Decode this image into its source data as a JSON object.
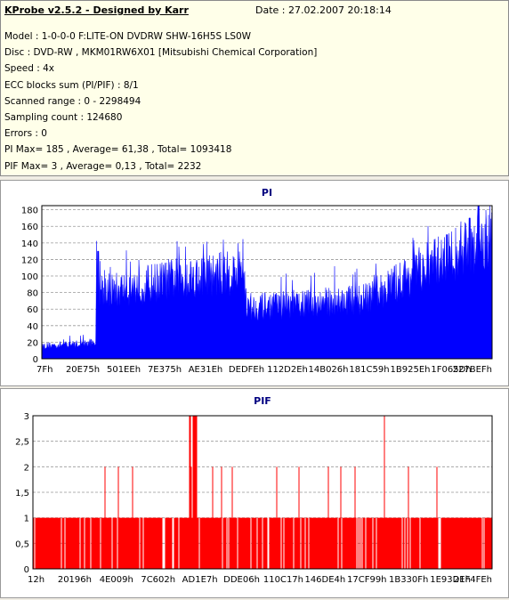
{
  "header": {
    "title": "KProbe v2.5.2 - Designed by Karr",
    "date": "Date : 27.02.2007 20:18:14",
    "lines": [
      "Model : 1-0-0-0 F:LITE-ON DVDRW SHW-16H5S  LS0W",
      "Disc : DVD-RW , MKM01RW6X01 [Mitsubishi Chemical Corporation]",
      "Speed : 4x",
      "ECC blocks sum (PI/PIF) : 8/1",
      "Scanned range : 0 - 2298494",
      "Sampling count : 124680",
      "Errors : 0",
      "PI Max= 185 , Average= 61,38 , Total= 1093418",
      "PIF Max= 3 , Average= 0,13 , Total= 2232"
    ]
  },
  "chart_data": [
    {
      "type": "area",
      "title": "PI",
      "color": "#0000ff",
      "ylim": [
        0,
        185
      ],
      "yticks": [
        "0",
        "20",
        "40",
        "60",
        "80",
        "100",
        "120",
        "140",
        "160",
        "180"
      ],
      "xticks": [
        "7Fh",
        "20E75h",
        "501EEh",
        "7E375h",
        "AE31Eh",
        "DEDFEh",
        "112D2Eh",
        "14B026h",
        "181C59h",
        "1B925Eh",
        "1F065Dh",
        "227BEFh"
      ],
      "grid": true,
      "profile": [
        [
          0,
          15
        ],
        [
          0.1,
          18
        ],
        [
          0.12,
          20
        ],
        [
          0.121,
          85
        ],
        [
          0.16,
          80
        ],
        [
          0.3,
          95
        ],
        [
          0.45,
          102
        ],
        [
          0.455,
          60
        ],
        [
          0.72,
          70
        ],
        [
          0.86,
          110
        ],
        [
          1.0,
          140
        ]
      ],
      "spikes": [
        [
          0.125,
          130
        ],
        [
          0.9,
          150
        ],
        [
          0.95,
          170
        ],
        [
          0.97,
          185
        ]
      ]
    },
    {
      "type": "bar",
      "title": "PIF",
      "color": "#ff0000",
      "ylim": [
        0,
        3
      ],
      "yticks": [
        "0",
        "0,5",
        "1",
        "1,5",
        "2",
        "2,5",
        "3"
      ],
      "xticks": [
        "12h",
        "20196h",
        "4E009h",
        "7C602h",
        "AD1E7h",
        "DDE06h",
        "110C17h",
        "146DE4h",
        "17CF99h",
        "1B330Fh",
        "1E93DEh",
        "21F4FEh"
      ],
      "grid": true,
      "values_note": "mostly 0-1 per sample, occasional 2, max 3"
    }
  ]
}
